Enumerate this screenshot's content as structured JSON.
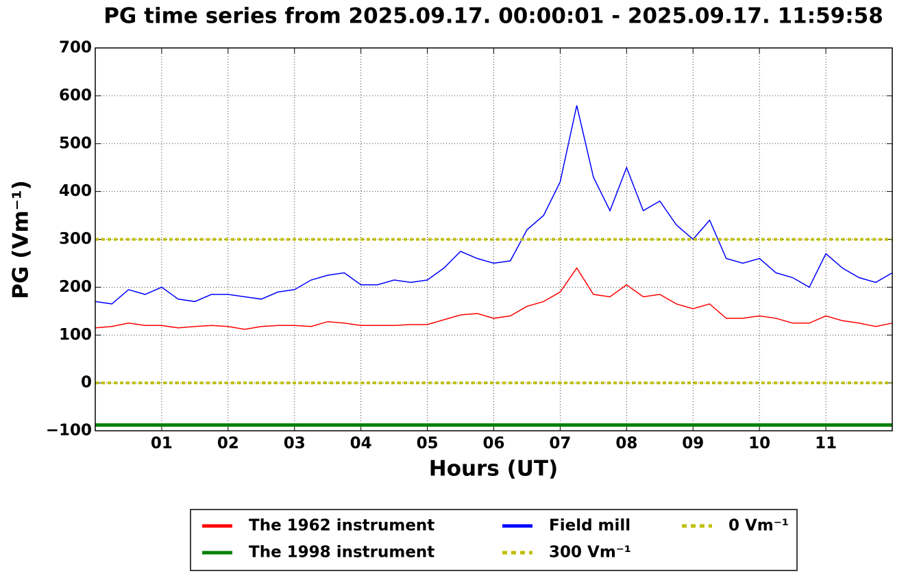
{
  "chart_data": {
    "type": "line",
    "title": "PG time series from 2025.09.17. 00:00:01 - 2025.09.17. 11:59:58",
    "xlabel": "Hours (UT)",
    "ylabel": "PG (Vm⁻¹)",
    "x": [
      0,
      0.25,
      0.5,
      0.75,
      1,
      1.25,
      1.5,
      1.75,
      2,
      2.25,
      2.5,
      2.75,
      3,
      3.25,
      3.5,
      3.75,
      4,
      4.25,
      4.5,
      4.75,
      5,
      5.25,
      5.5,
      5.75,
      6,
      6.25,
      6.5,
      6.75,
      7,
      7.25,
      7.5,
      7.75,
      8,
      8.25,
      8.5,
      8.75,
      9,
      9.25,
      9.5,
      9.75,
      10,
      10.25,
      10.5,
      10.75,
      11,
      11.25,
      11.5,
      11.75,
      12
    ],
    "series": [
      {
        "name": "The 1962 instrument",
        "color": "#ff0000",
        "values": [
          115,
          118,
          125,
          120,
          120,
          115,
          118,
          120,
          118,
          112,
          118,
          120,
          120,
          118,
          128,
          125,
          120,
          120,
          120,
          122,
          122,
          132,
          142,
          145,
          135,
          140,
          160,
          170,
          190,
          240,
          185,
          180,
          205,
          180,
          185,
          165,
          155,
          165,
          135,
          135,
          140,
          135,
          125,
          125,
          140,
          130,
          125,
          118,
          125
        ]
      },
      {
        "name": "The 1998 instrument",
        "color": "#008000",
        "values": [
          -88,
          -88,
          -88,
          -88,
          -88,
          -88,
          -88,
          -88,
          -88,
          -88,
          -88,
          -88,
          -88,
          -88,
          -88,
          -88,
          -88,
          -88,
          -88,
          -88,
          -88,
          -88,
          -88,
          -88,
          -88,
          -88,
          -88,
          -88,
          -88,
          -88,
          -88,
          -88,
          -88,
          -88,
          -88,
          -88,
          -88,
          -88,
          -88,
          -88,
          -88,
          -88,
          -88,
          -88,
          -88,
          -88,
          -88,
          -88,
          -88
        ]
      },
      {
        "name": "Field mill",
        "color": "#0000ff",
        "values": [
          170,
          165,
          195,
          185,
          200,
          175,
          170,
          185,
          185,
          180,
          175,
          190,
          195,
          215,
          225,
          230,
          205,
          205,
          215,
          210,
          215,
          240,
          275,
          260,
          250,
          255,
          320,
          350,
          420,
          580,
          430,
          360,
          450,
          360,
          380,
          330,
          300,
          340,
          260,
          250,
          260,
          230,
          220,
          200,
          270,
          240,
          220,
          210,
          230
        ]
      }
    ],
    "hlines": [
      {
        "name": "300 Vm⁻¹",
        "color": "#bfbf00",
        "value": 300
      },
      {
        "name": "0 Vm⁻¹",
        "color": "#bfbf00",
        "value": 0
      }
    ],
    "xlim": [
      0,
      12
    ],
    "xticks": [
      {
        "value": 1,
        "label": "01"
      },
      {
        "value": 2,
        "label": "02"
      },
      {
        "value": 3,
        "label": "03"
      },
      {
        "value": 4,
        "label": "04"
      },
      {
        "value": 5,
        "label": "05"
      },
      {
        "value": 6,
        "label": "06"
      },
      {
        "value": 7,
        "label": "07"
      },
      {
        "value": 8,
        "label": "08"
      },
      {
        "value": 9,
        "label": "09"
      },
      {
        "value": 10,
        "label": "10"
      },
      {
        "value": 11,
        "label": "11"
      }
    ],
    "ylim": [
      -100,
      700
    ],
    "yticks": [
      {
        "value": -100,
        "label": "−100"
      },
      0,
      100,
      200,
      300,
      400,
      500,
      600,
      700
    ],
    "grid": true
  }
}
